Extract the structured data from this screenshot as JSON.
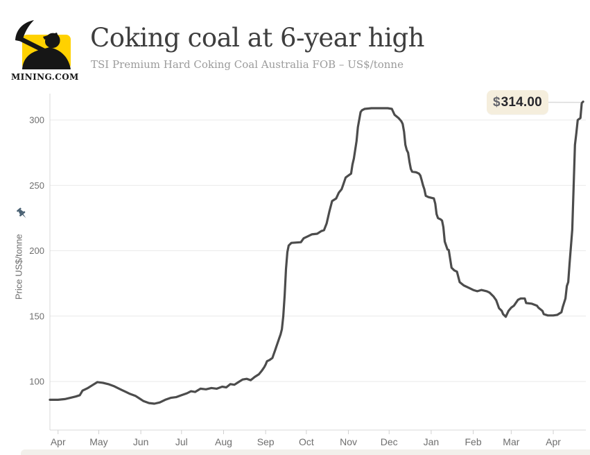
{
  "header": {
    "logo": {
      "brand": "MINING.COM",
      "square_color": "#ffd100",
      "silhouette_color": "#161616"
    },
    "title": "Coking coal at 6-year high",
    "subtitle": "TSI Premium Hard Coking Coal Australia FOB – US$/tonne"
  },
  "tooltip": {
    "currency_symbol": "$",
    "value": "314.00",
    "bg_color": "#f5eedd"
  },
  "colors": {
    "line": "#4c4c4c",
    "grid": "#e9e9e9",
    "axis": "#d9d9d9",
    "axis_text": "#6e6e6e",
    "title_text": "#3e3e3e",
    "subtitle_text": "#9b9b9b",
    "tooltip_bg": "#f5eedd",
    "logo_yellow": "#ffd100",
    "pushpin": "#4a6173"
  },
  "chart_data": {
    "type": "line",
    "title": "Coking coal at 6-year high",
    "subtitle": "TSI Premium Hard Coking Coal Australia FOB – US$/tonne",
    "ylabel": "Price US$/tonne",
    "xlabel": "",
    "unit": "US$/tonne",
    "grid": "horizontal",
    "legend": "none",
    "ylim": [
      62,
      320
    ],
    "yticks": [
      100,
      150,
      200,
      250,
      300
    ],
    "x_range": [
      "2016-03-26",
      "2017-04-25"
    ],
    "xticks": [
      {
        "date": "2016-04-01",
        "label": "Apr"
      },
      {
        "date": "2016-05-01",
        "label": "May"
      },
      {
        "date": "2016-06-01",
        "label": "Jun"
      },
      {
        "date": "2016-07-01",
        "label": "Jul"
      },
      {
        "date": "2016-08-01",
        "label": "Aug"
      },
      {
        "date": "2016-09-01",
        "label": "Sep"
      },
      {
        "date": "2016-10-01",
        "label": "Oct"
      },
      {
        "date": "2016-11-01",
        "label": "Nov"
      },
      {
        "date": "2016-12-01",
        "label": "Dec"
      },
      {
        "date": "2017-01-01",
        "label": "Jan"
      },
      {
        "date": "2017-02-01",
        "label": "Feb"
      },
      {
        "date": "2017-03-01",
        "label": "Mar"
      },
      {
        "date": "2017-04-01",
        "label": "Apr"
      }
    ],
    "last_value": 314,
    "last_value_label": "$314.00",
    "series": [
      {
        "name": "TSI Premium Hard Coking Coal Australia FOB",
        "points": [
          [
            "2016-03-26",
            86
          ],
          [
            "2016-04-01",
            86
          ],
          [
            "2016-04-06",
            86.5
          ],
          [
            "2016-04-10",
            87.5
          ],
          [
            "2016-04-14",
            88.5
          ],
          [
            "2016-04-17",
            89.5
          ],
          [
            "2016-04-19",
            93
          ],
          [
            "2016-04-23",
            95
          ],
          [
            "2016-04-26",
            97
          ],
          [
            "2016-04-30",
            99.5
          ],
          [
            "2016-05-04",
            99
          ],
          [
            "2016-05-08",
            98
          ],
          [
            "2016-05-12",
            96.5
          ],
          [
            "2016-05-15",
            95
          ],
          [
            "2016-05-18",
            93.5
          ],
          [
            "2016-05-21",
            92
          ],
          [
            "2016-05-24",
            90.5
          ],
          [
            "2016-05-28",
            89
          ],
          [
            "2016-05-31",
            87
          ],
          [
            "2016-06-03",
            85
          ],
          [
            "2016-06-07",
            83.5
          ],
          [
            "2016-06-11",
            83
          ],
          [
            "2016-06-15",
            84
          ],
          [
            "2016-06-19",
            86
          ],
          [
            "2016-06-23",
            87.5
          ],
          [
            "2016-06-27",
            88
          ],
          [
            "2016-07-01",
            89.5
          ],
          [
            "2016-07-05",
            91
          ],
          [
            "2016-07-08",
            92.5
          ],
          [
            "2016-07-11",
            92
          ],
          [
            "2016-07-15",
            94.5
          ],
          [
            "2016-07-19",
            94
          ],
          [
            "2016-07-23",
            95
          ],
          [
            "2016-07-27",
            94.5
          ],
          [
            "2016-07-31",
            96
          ],
          [
            "2016-08-03",
            95.5
          ],
          [
            "2016-08-06",
            98
          ],
          [
            "2016-08-09",
            97.5
          ],
          [
            "2016-08-12",
            99.5
          ],
          [
            "2016-08-15",
            101.5
          ],
          [
            "2016-08-18",
            102
          ],
          [
            "2016-08-21",
            101
          ],
          [
            "2016-08-24",
            103.5
          ],
          [
            "2016-08-27",
            105.5
          ],
          [
            "2016-08-29",
            108
          ],
          [
            "2016-08-31",
            111
          ],
          [
            "2016-09-01",
            113
          ],
          [
            "2016-09-02",
            115.5
          ],
          [
            "2016-09-04",
            116.5
          ],
          [
            "2016-09-06",
            118
          ],
          [
            "2016-09-07",
            121
          ],
          [
            "2016-09-08",
            124
          ],
          [
            "2016-09-09",
            127
          ],
          [
            "2016-09-10",
            130
          ],
          [
            "2016-09-11",
            133
          ],
          [
            "2016-09-12",
            136
          ],
          [
            "2016-09-13",
            140
          ],
          [
            "2016-09-14",
            150
          ],
          [
            "2016-09-15",
            166
          ],
          [
            "2016-09-16",
            186
          ],
          [
            "2016-09-17",
            199
          ],
          [
            "2016-09-18",
            204
          ],
          [
            "2016-09-20",
            206
          ],
          [
            "2016-09-27",
            206.5
          ],
          [
            "2016-09-29",
            209.5
          ],
          [
            "2016-10-02",
            211
          ],
          [
            "2016-10-05",
            212.5
          ],
          [
            "2016-10-09",
            213
          ],
          [
            "2016-10-12",
            215
          ],
          [
            "2016-10-14",
            215.7
          ],
          [
            "2016-10-16",
            221
          ],
          [
            "2016-10-18",
            230
          ],
          [
            "2016-10-20",
            238
          ],
          [
            "2016-10-23",
            240
          ],
          [
            "2016-10-25",
            244.5
          ],
          [
            "2016-10-27",
            247
          ],
          [
            "2016-10-28",
            250
          ],
          [
            "2016-10-30",
            256
          ],
          [
            "2016-11-01",
            257.5
          ],
          [
            "2016-11-03",
            259
          ],
          [
            "2016-11-04",
            266
          ],
          [
            "2016-11-05",
            270.5
          ],
          [
            "2016-11-07",
            284
          ],
          [
            "2016-11-08",
            294.5
          ],
          [
            "2016-11-10",
            306
          ],
          [
            "2016-11-11",
            307.5
          ],
          [
            "2016-11-13",
            308.5
          ],
          [
            "2016-11-18",
            309
          ],
          [
            "2016-11-24",
            309
          ],
          [
            "2016-11-30",
            309
          ],
          [
            "2016-12-03",
            308.5
          ],
          [
            "2016-12-05",
            304
          ],
          [
            "2016-12-08",
            301.5
          ],
          [
            "2016-12-10",
            299
          ],
          [
            "2016-12-11",
            297
          ],
          [
            "2016-12-12",
            291
          ],
          [
            "2016-12-13",
            281
          ],
          [
            "2016-12-14",
            277
          ],
          [
            "2016-12-15",
            275
          ],
          [
            "2016-12-16",
            268
          ],
          [
            "2016-12-17",
            262.5
          ],
          [
            "2016-12-18",
            260.5
          ],
          [
            "2016-12-21",
            260
          ],
          [
            "2016-12-23",
            259
          ],
          [
            "2016-12-24",
            257.5
          ],
          [
            "2016-12-25",
            254
          ],
          [
            "2016-12-26",
            250
          ],
          [
            "2016-12-27",
            247
          ],
          [
            "2016-12-28",
            242
          ],
          [
            "2016-12-30",
            241
          ],
          [
            "2017-01-03",
            240
          ],
          [
            "2017-01-04",
            236
          ],
          [
            "2017-01-05",
            228
          ],
          [
            "2017-01-06",
            225
          ],
          [
            "2017-01-08",
            224
          ],
          [
            "2017-01-09",
            223
          ],
          [
            "2017-01-10",
            218
          ],
          [
            "2017-01-11",
            207
          ],
          [
            "2017-01-13",
            201
          ],
          [
            "2017-01-14",
            200.5
          ],
          [
            "2017-01-16",
            187
          ],
          [
            "2017-01-18",
            185
          ],
          [
            "2017-01-20",
            184
          ],
          [
            "2017-01-22",
            176
          ],
          [
            "2017-01-25",
            173.5
          ],
          [
            "2017-01-29",
            171.5
          ],
          [
            "2017-02-01",
            170
          ],
          [
            "2017-02-04",
            169
          ],
          [
            "2017-02-07",
            170
          ],
          [
            "2017-02-11",
            169
          ],
          [
            "2017-02-13",
            168
          ],
          [
            "2017-02-16",
            165
          ],
          [
            "2017-02-18",
            162
          ],
          [
            "2017-02-20",
            156
          ],
          [
            "2017-02-22",
            154
          ],
          [
            "2017-02-23",
            151.5
          ],
          [
            "2017-02-25",
            149.5
          ],
          [
            "2017-02-27",
            154
          ],
          [
            "2017-03-01",
            156.5
          ],
          [
            "2017-03-03",
            158
          ],
          [
            "2017-03-06",
            162.5
          ],
          [
            "2017-03-08",
            163.5
          ],
          [
            "2017-03-11",
            163.5
          ],
          [
            "2017-03-12",
            160
          ],
          [
            "2017-03-16",
            159.5
          ],
          [
            "2017-03-20",
            158
          ],
          [
            "2017-03-21",
            156.5
          ],
          [
            "2017-03-24",
            154
          ],
          [
            "2017-03-25",
            151.5
          ],
          [
            "2017-03-28",
            150.5
          ],
          [
            "2017-04-01",
            150.5
          ],
          [
            "2017-04-04",
            151
          ],
          [
            "2017-04-07",
            153
          ],
          [
            "2017-04-08",
            157
          ],
          [
            "2017-04-10",
            163.5
          ],
          [
            "2017-04-11",
            173
          ],
          [
            "2017-04-12",
            176
          ],
          [
            "2017-04-13",
            190
          ],
          [
            "2017-04-15",
            216
          ],
          [
            "2017-04-17",
            281
          ],
          [
            "2017-04-18",
            290
          ],
          [
            "2017-04-19",
            300
          ],
          [
            "2017-04-21",
            301.5
          ],
          [
            "2017-04-22",
            313
          ],
          [
            "2017-04-23",
            314
          ]
        ]
      }
    ]
  }
}
